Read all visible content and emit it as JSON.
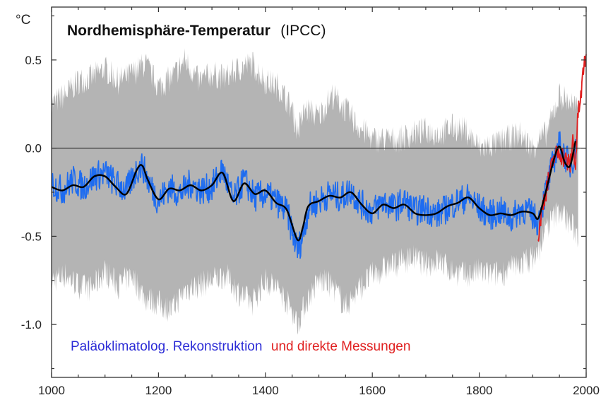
{
  "chart_data": {
    "type": "line",
    "title": "Nordhemisphäre-Temperatur",
    "subtitle": "(IPCC)",
    "ylabel": "°C",
    "xlabel": "",
    "xlim": [
      1000,
      2000
    ],
    "ylim": [
      -1.3,
      0.8
    ],
    "x_ticks": [
      1000,
      1200,
      1400,
      1600,
      1800,
      2000
    ],
    "y_ticks": [
      0.5,
      0.0,
      -0.5,
      -1.0
    ],
    "y_tick_labels": [
      "0.5",
      "0.0",
      "-0.5",
      "-1.0"
    ],
    "zero_line": 0.0,
    "legend": {
      "placement": "bottom-left",
      "entries": [
        {
          "label": "Paläoklimatolog. Rekonstruktion",
          "color": "#2b2bd6"
        },
        {
          "label": "und direkte Messungen",
          "color": "#e02020"
        }
      ]
    },
    "colors": {
      "uncertainty": "#b4b4b4",
      "reconstruction": "#1e6cf0",
      "smoothed": "#000000",
      "measured": "#e01e1e"
    },
    "series": [
      {
        "role": "uncertainty-band",
        "x": [
          1000,
          1025,
          1050,
          1075,
          1100,
          1125,
          1150,
          1175,
          1200,
          1225,
          1250,
          1275,
          1300,
          1325,
          1350,
          1375,
          1400,
          1425,
          1450,
          1460,
          1475,
          1500,
          1525,
          1550,
          1575,
          1600,
          1625,
          1650,
          1675,
          1700,
          1725,
          1750,
          1775,
          1800,
          1825,
          1850,
          1875,
          1900,
          1910,
          1925,
          1950,
          1975,
          1985
        ],
        "upper": [
          0.25,
          0.3,
          0.38,
          0.4,
          0.45,
          0.38,
          0.42,
          0.48,
          0.35,
          0.4,
          0.5,
          0.38,
          0.42,
          0.4,
          0.45,
          0.48,
          0.38,
          0.35,
          0.22,
          0.1,
          0.22,
          0.18,
          0.3,
          0.22,
          0.12,
          0.05,
          0.05,
          0.05,
          0.08,
          0.1,
          0.08,
          0.12,
          0.1,
          0.0,
          0.02,
          0.05,
          0.08,
          0.0,
          0.05,
          0.08,
          0.3,
          0.25,
          0.2
        ],
        "lower": [
          -0.75,
          -0.72,
          -0.78,
          -0.8,
          -0.7,
          -0.78,
          -0.72,
          -0.85,
          -0.88,
          -0.92,
          -0.8,
          -0.78,
          -0.75,
          -0.72,
          -0.82,
          -0.88,
          -0.75,
          -0.8,
          -0.92,
          -1.0,
          -0.88,
          -0.75,
          -0.78,
          -0.9,
          -0.8,
          -0.72,
          -0.68,
          -0.65,
          -0.62,
          -0.66,
          -0.64,
          -0.7,
          -0.72,
          -0.7,
          -0.72,
          -0.7,
          -0.66,
          -0.62,
          -0.6,
          -0.45,
          -0.35,
          -0.45,
          -0.5
        ]
      },
      {
        "role": "reconstruction",
        "x": [
          1000,
          1020,
          1040,
          1060,
          1080,
          1100,
          1120,
          1140,
          1160,
          1170,
          1180,
          1200,
          1220,
          1240,
          1260,
          1280,
          1300,
          1320,
          1340,
          1360,
          1380,
          1400,
          1420,
          1440,
          1460,
          1470,
          1480,
          1500,
          1520,
          1540,
          1560,
          1580,
          1600,
          1620,
          1640,
          1660,
          1680,
          1700,
          1720,
          1740,
          1760,
          1780,
          1800,
          1820,
          1840,
          1860,
          1880,
          1900,
          1910,
          1920,
          1930,
          1940,
          1950,
          1960,
          1970,
          1980
        ],
        "y": [
          -0.2,
          -0.24,
          -0.18,
          -0.22,
          -0.16,
          -0.14,
          -0.2,
          -0.24,
          -0.12,
          -0.1,
          -0.18,
          -0.3,
          -0.22,
          -0.26,
          -0.2,
          -0.24,
          -0.22,
          -0.12,
          -0.3,
          -0.18,
          -0.28,
          -0.26,
          -0.3,
          -0.36,
          -0.58,
          -0.5,
          -0.34,
          -0.3,
          -0.26,
          -0.28,
          -0.24,
          -0.32,
          -0.36,
          -0.3,
          -0.34,
          -0.3,
          -0.36,
          -0.34,
          -0.38,
          -0.34,
          -0.3,
          -0.28,
          -0.34,
          -0.38,
          -0.36,
          -0.4,
          -0.34,
          -0.38,
          -0.42,
          -0.3,
          -0.18,
          -0.06,
          0.02,
          -0.04,
          -0.1,
          -0.02
        ]
      },
      {
        "role": "smoothed",
        "x": [
          1000,
          1020,
          1040,
          1060,
          1080,
          1100,
          1120,
          1140,
          1160,
          1170,
          1180,
          1200,
          1220,
          1240,
          1260,
          1280,
          1300,
          1320,
          1340,
          1360,
          1380,
          1400,
          1420,
          1440,
          1460,
          1470,
          1480,
          1500,
          1520,
          1540,
          1560,
          1580,
          1600,
          1620,
          1640,
          1660,
          1680,
          1700,
          1720,
          1740,
          1760,
          1780,
          1800,
          1820,
          1840,
          1860,
          1880,
          1900,
          1910,
          1920,
          1930,
          1940,
          1950,
          1960,
          1970,
          1980
        ],
        "y": [
          -0.22,
          -0.24,
          -0.21,
          -0.22,
          -0.16,
          -0.16,
          -0.22,
          -0.26,
          -0.12,
          -0.1,
          -0.18,
          -0.29,
          -0.23,
          -0.24,
          -0.21,
          -0.24,
          -0.21,
          -0.14,
          -0.3,
          -0.2,
          -0.26,
          -0.24,
          -0.31,
          -0.35,
          -0.52,
          -0.45,
          -0.33,
          -0.3,
          -0.27,
          -0.28,
          -0.25,
          -0.32,
          -0.37,
          -0.32,
          -0.34,
          -0.32,
          -0.37,
          -0.38,
          -0.37,
          -0.33,
          -0.31,
          -0.28,
          -0.34,
          -0.38,
          -0.37,
          -0.38,
          -0.36,
          -0.37,
          -0.4,
          -0.3,
          -0.18,
          -0.06,
          0.01,
          -0.08,
          -0.1,
          0.04
        ]
      },
      {
        "role": "measured",
        "x": [
          1910,
          1920,
          1930,
          1940,
          1950,
          1960,
          1970,
          1975,
          1980,
          1985,
          1990,
          1995,
          2000
        ],
        "y": [
          -0.5,
          -0.3,
          -0.18,
          -0.05,
          -0.02,
          -0.06,
          -0.1,
          0.05,
          -0.1,
          0.2,
          0.28,
          0.45,
          0.55
        ]
      }
    ]
  }
}
